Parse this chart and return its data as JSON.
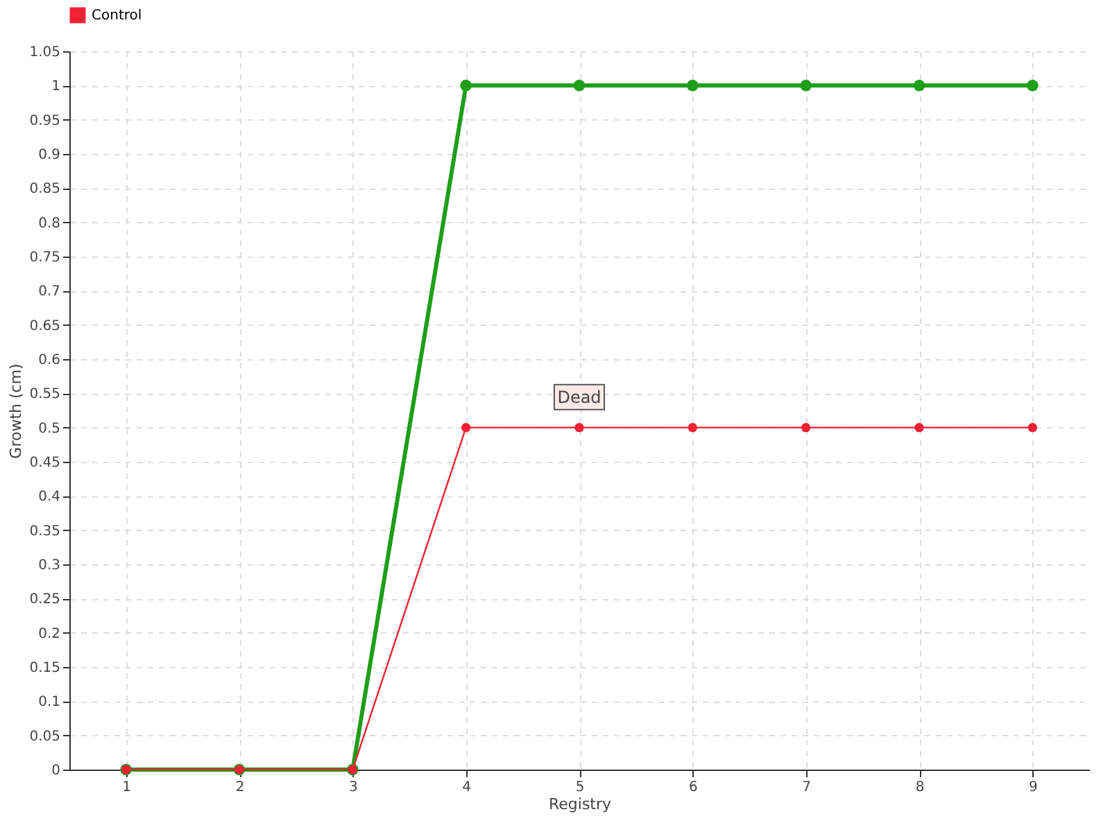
{
  "chart_data": {
    "type": "line",
    "xlabel": "Registry",
    "ylabel": "Growth (cm)",
    "categories": [
      "1",
      "2",
      "3",
      "4",
      "5",
      "6",
      "7",
      "8",
      "9"
    ],
    "series": [
      {
        "color": "#1f9e1a",
        "values": [
          0,
          0,
          0,
          1,
          1,
          1,
          1,
          1,
          1
        ]
      },
      {
        "name": "Control",
        "color": "#ee2233",
        "values": [
          0,
          0,
          0,
          0.5,
          0.5,
          0.5,
          0.5,
          0.5,
          0.5
        ]
      }
    ],
    "ylim": [
      0,
      1.05
    ],
    "yticks": [
      0,
      0.05,
      0.1,
      0.15,
      0.2,
      0.25,
      0.3,
      0.35,
      0.4,
      0.45,
      0.5,
      0.55,
      0.6,
      0.65,
      0.7,
      0.75,
      0.8,
      0.85,
      0.9,
      0.95,
      1,
      1.05
    ],
    "annotations": [
      {
        "text": "Dead",
        "x": "5",
        "y": 0.5
      }
    ],
    "grid": true,
    "legend": "top left",
    "marker": "circle",
    "line_style": "solid"
  }
}
